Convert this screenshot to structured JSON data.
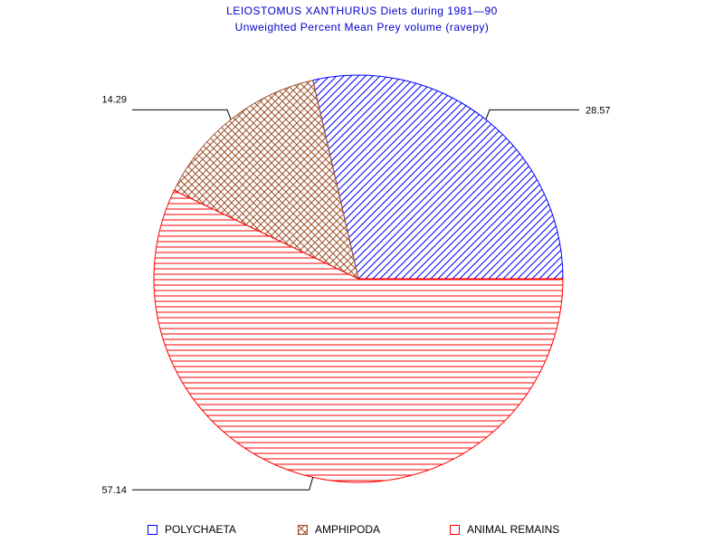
{
  "chart_data": {
    "type": "pie",
    "title": "LEIOSTOMUS XANTHURUS Diets during 1981—90",
    "subtitle": "Unweighted Percent Mean Prey volume (ravepy)",
    "slices": [
      {
        "name": "POLYCHAETA",
        "value": 28.57,
        "label": "28.57",
        "color": "#0000ff",
        "pattern": "diagonal"
      },
      {
        "name": "AMPHIPODA",
        "value": 14.29,
        "label": "14.29",
        "color": "#a0522d",
        "pattern": "crosshatch"
      },
      {
        "name": "ANIMAL REMAINS",
        "value": 57.14,
        "label": "57.14",
        "color": "#ff0000",
        "pattern": "horizontal"
      }
    ],
    "legend_placement": "bottom"
  }
}
